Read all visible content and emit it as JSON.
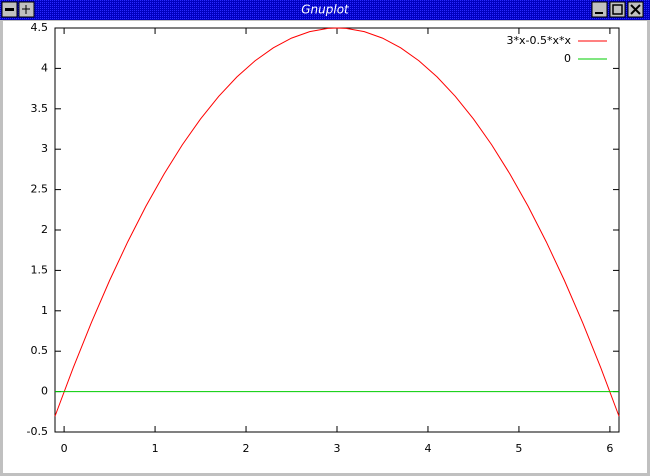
{
  "window": {
    "title": "Gnuplot"
  },
  "chart_data": {
    "type": "line",
    "series": [
      {
        "name": "3*x-0.5*x*x",
        "color": "#ff0000",
        "x": [
          -0.1,
          0.1,
          0.3,
          0.5,
          0.7,
          0.9,
          1.1,
          1.3,
          1.5,
          1.7,
          1.9,
          2.1,
          2.3,
          2.5,
          2.7,
          2.9,
          3.0,
          3.1,
          3.3,
          3.5,
          3.7,
          3.9,
          4.1,
          4.3,
          4.5,
          4.7,
          4.9,
          5.1,
          5.3,
          5.5,
          5.7,
          5.9,
          6.1
        ],
        "values": [
          -0.305,
          0.295,
          0.855,
          1.375,
          1.855,
          2.295,
          2.695,
          3.055,
          3.375,
          3.655,
          3.895,
          4.095,
          4.255,
          4.375,
          4.455,
          4.495,
          4.5,
          4.495,
          4.455,
          4.375,
          4.255,
          4.095,
          3.895,
          3.655,
          3.375,
          3.055,
          2.695,
          2.295,
          1.855,
          1.375,
          0.855,
          0.295,
          -0.305
        ]
      },
      {
        "name": "0",
        "color": "#00cc00",
        "x": [
          -0.1,
          6.1
        ],
        "values": [
          0,
          0
        ]
      }
    ],
    "xlim": [
      -0.1,
      6.1
    ],
    "xticks": [
      0,
      1,
      2,
      3,
      4,
      5,
      6
    ],
    "ylim": [
      -0.5,
      4.5
    ],
    "yticks": [
      -0.5,
      0,
      0.5,
      1,
      1.5,
      2,
      2.5,
      3,
      3.5,
      4,
      4.5
    ],
    "legend": "top-right"
  }
}
